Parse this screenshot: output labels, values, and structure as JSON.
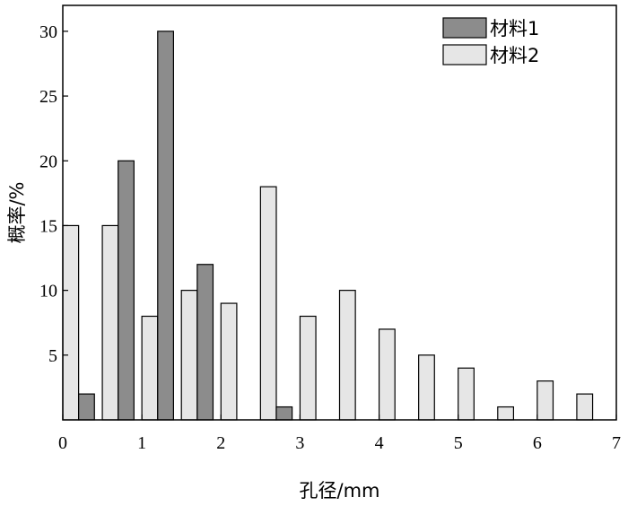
{
  "chart_data": {
    "type": "bar",
    "title": "",
    "xlabel": "孔径/mm",
    "ylabel": "概率/%",
    "xlim": [
      0,
      7
    ],
    "ylim": [
      0,
      32
    ],
    "x_ticks": [
      "0",
      "1",
      "2",
      "3",
      "4",
      "5",
      "6",
      "7"
    ],
    "y_ticks": [
      "5",
      "10",
      "15",
      "20",
      "25",
      "30"
    ],
    "grid": false,
    "legend_position": "top-right",
    "series": [
      {
        "name": "材料1",
        "color": "#8c8c8c",
        "bins": [
          0.25,
          0.75,
          1.25,
          1.75,
          2.75
        ],
        "values": [
          2,
          20,
          30,
          12,
          1
        ]
      },
      {
        "name": "材料2",
        "color": "#e6e6e6",
        "bins": [
          0.25,
          0.75,
          1.25,
          1.75,
          2.25,
          2.75,
          3.25,
          3.75,
          4.25,
          4.75,
          5.25,
          5.75,
          6.25,
          6.75
        ],
        "values": [
          15,
          15,
          8,
          10,
          9,
          18,
          8,
          10,
          7,
          5,
          4,
          1,
          3,
          2
        ]
      }
    ]
  }
}
